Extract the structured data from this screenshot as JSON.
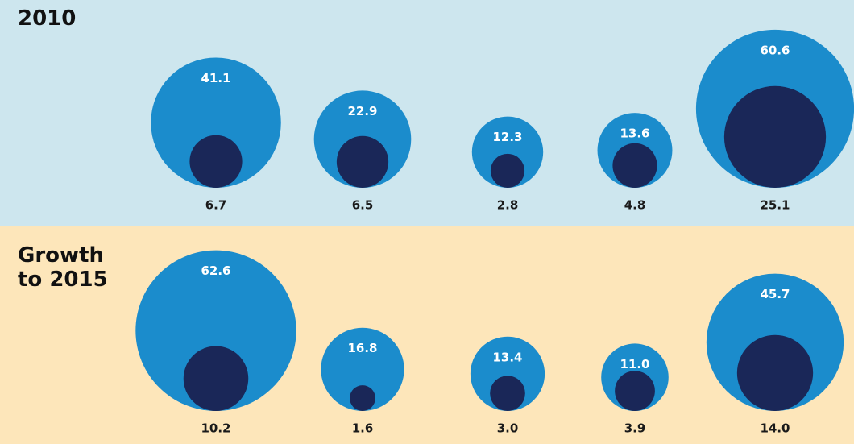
{
  "chart_data": [
    {
      "type": "bubble",
      "title": "2010",
      "background": "#cde6ee",
      "series": [
        {
          "color": "#1b8ccc",
          "values": [
            41.1,
            22.9,
            12.3,
            13.6,
            60.6
          ]
        },
        {
          "color": "#1a2758",
          "values": [
            6.7,
            6.5,
            2.8,
            4.8,
            25.1
          ]
        }
      ]
    },
    {
      "type": "bubble",
      "title": "Growth to 2015",
      "background": "#fde6ba",
      "series": [
        {
          "color": "#1b8ccc",
          "values": [
            62.6,
            16.8,
            13.4,
            11.0,
            45.7
          ]
        },
        {
          "color": "#1a2758",
          "values": [
            10.2,
            1.6,
            3.0,
            3.9,
            14.0
          ]
        }
      ],
      "value_labels": [
        [
          "62.6",
          "16.8",
          "13.4",
          "11.0",
          "45.7"
        ],
        [
          "10.2",
          "1.6",
          "3.0",
          "3.9",
          "14.0"
        ]
      ]
    }
  ]
}
